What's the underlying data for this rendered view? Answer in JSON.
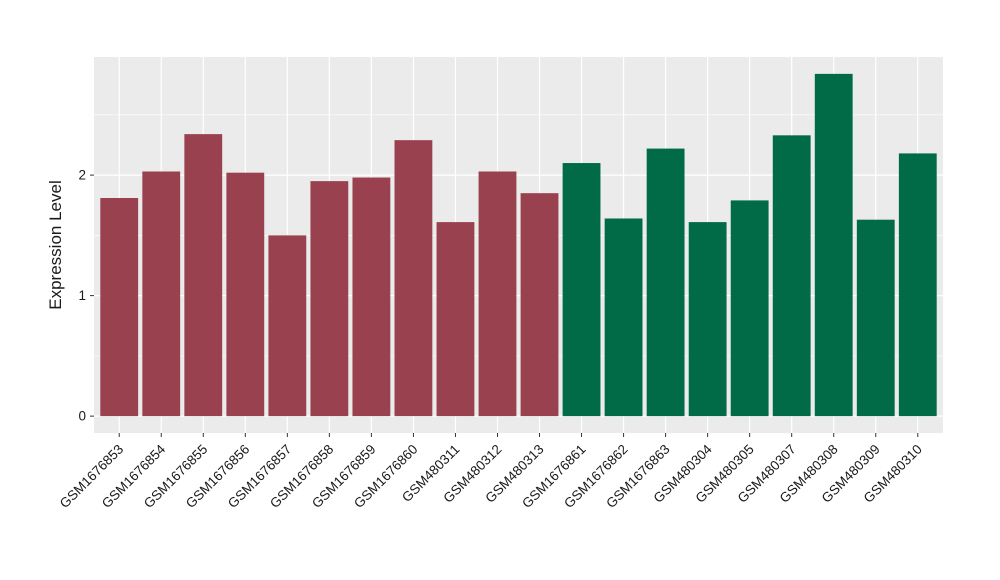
{
  "chart_data": {
    "type": "bar",
    "title": "",
    "xlabel": "",
    "ylabel": "Expression Level",
    "categories": [
      "GSM1676853",
      "GSM1676854",
      "GSM1676855",
      "GSM1676856",
      "GSM1676857",
      "GSM1676858",
      "GSM1676859",
      "GSM1676860",
      "GSM480311",
      "GSM480312",
      "GSM480313",
      "GSM1676861",
      "GSM1676862",
      "GSM1676863",
      "GSM480304",
      "GSM480305",
      "GSM480307",
      "GSM480308",
      "GSM480309",
      "GSM480310"
    ],
    "values": [
      1.81,
      2.03,
      2.34,
      2.02,
      1.5,
      1.95,
      1.98,
      2.29,
      1.61,
      2.03,
      1.85,
      2.1,
      1.64,
      2.22,
      1.61,
      1.79,
      2.33,
      2.84,
      1.63,
      2.18
    ],
    "bar_groups": [
      "g1",
      "g1",
      "g1",
      "g1",
      "g1",
      "g1",
      "g1",
      "g1",
      "g1",
      "g1",
      "g1",
      "g2",
      "g2",
      "g2",
      "g2",
      "g2",
      "g2",
      "g2",
      "g2",
      "g2"
    ],
    "group_colors": {
      "g1": "#9A414F",
      "g2": "#006B46"
    },
    "yticks": [
      {
        "value": 0,
        "label": "0"
      },
      {
        "value": 1,
        "label": "1"
      },
      {
        "value": 2,
        "label": "2"
      }
    ],
    "minor_ticks": [
      0.5,
      1.5,
      2.5
    ],
    "ylim": [
      -0.14,
      2.98
    ],
    "grid": "on",
    "legend": "none",
    "panel_bg": "#EBEBEB",
    "grid_color": "#FFFFFF",
    "axis_text_color": "#1a1a1a",
    "tick_mark_color": "#333333"
  }
}
